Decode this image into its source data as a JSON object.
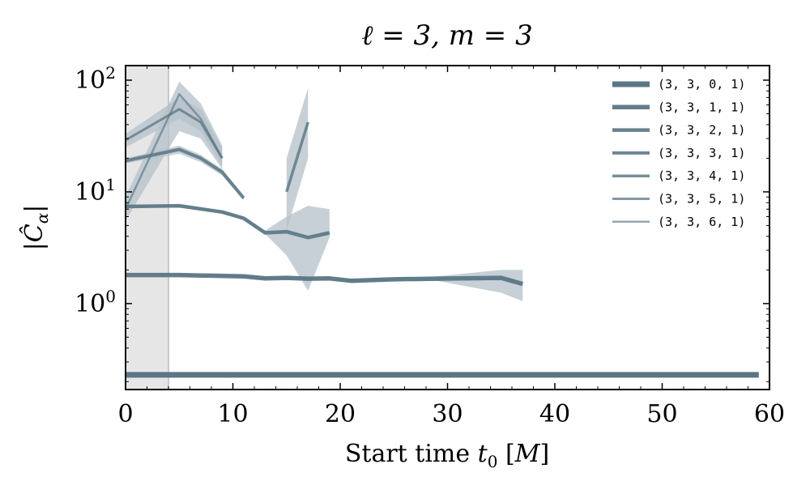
{
  "chart_data": {
    "type": "line",
    "title": "ℓ = 3, m = 3",
    "xlabel": "Start time t₀ [M]",
    "ylabel": "|Ĉα|",
    "xlim": [
      0,
      60
    ],
    "ylim": [
      0.17,
      135
    ],
    "yscale": "log",
    "x_ticks": [
      "0",
      "10",
      "20",
      "30",
      "40",
      "50",
      "60"
    ],
    "y_ticks": [
      {
        "value": 1,
        "base": "10",
        "exp": "0"
      },
      {
        "value": 10,
        "base": "10",
        "exp": "1"
      },
      {
        "value": 100,
        "base": "10",
        "exp": "2"
      }
    ],
    "grid": false,
    "legend_position": "top-right",
    "shaded_region": [
      0,
      4
    ],
    "colors": {
      "line": "#5b7685",
      "band": "#b4c0c8",
      "shade": "#e6e6e6",
      "shade_edge": "#c8c8c8",
      "axis": "#000000"
    },
    "series": [
      {
        "name": "(3, 3, 0, 1)",
        "x": [
          0,
          59
        ],
        "y": [
          0.23,
          0.23
        ],
        "lower": [
          0.23,
          0.23
        ],
        "upper": [
          0.23,
          0.23
        ]
      },
      {
        "name": "(3, 3, 1, 1)",
        "x": [
          0,
          5,
          11,
          13,
          15,
          17,
          19,
          21,
          25,
          29,
          35,
          37
        ],
        "y": [
          1.8,
          1.8,
          1.75,
          1.68,
          1.7,
          1.67,
          1.68,
          1.6,
          1.65,
          1.67,
          1.7,
          1.5
        ],
        "lower": [
          1.78,
          1.78,
          1.72,
          1.64,
          1.66,
          1.62,
          1.64,
          1.56,
          1.6,
          1.6,
          1.25,
          1.05
        ],
        "upper": [
          1.83,
          1.83,
          1.8,
          1.72,
          1.74,
          1.72,
          1.72,
          1.64,
          1.7,
          1.75,
          2.0,
          2.0
        ]
      },
      {
        "name": "(3, 3, 2, 1)",
        "x": [
          0,
          5,
          9,
          11,
          13,
          15,
          17,
          19
        ],
        "y": [
          7.4,
          7.5,
          6.6,
          5.8,
          4.3,
          4.4,
          3.9,
          4.3
        ],
        "lower": [
          7.2,
          7.3,
          6.4,
          5.6,
          4.2,
          2.7,
          1.3,
          3.9
        ],
        "upper": [
          7.6,
          7.7,
          6.8,
          6.0,
          4.5,
          6.0,
          7.5,
          7.0
        ]
      },
      {
        "name": "(3, 3, 3, 1)",
        "x": [
          0,
          5,
          7,
          9,
          11
        ],
        "y": [
          19,
          24,
          20,
          15,
          8.8
        ],
        "lower": [
          18,
          22,
          18.5,
          14,
          8.4
        ],
        "upper": [
          20,
          26,
          21.5,
          16,
          9.3
        ]
      },
      {
        "name": "(3, 3, 4, 1)",
        "x": [
          15,
          17
        ],
        "y": [
          10,
          42
        ],
        "lower": [
          4.5,
          20
        ],
        "upper": [
          20,
          85
        ]
      },
      {
        "name": "(3, 3, 5, 1)",
        "x": [
          0,
          5,
          7,
          9
        ],
        "y": [
          29,
          55,
          42,
          20
        ],
        "lower": [
          25,
          45,
          35,
          17
        ],
        "upper": [
          33,
          70,
          55,
          25
        ]
      },
      {
        "name": "(3, 3, 6, 1)",
        "x": [
          0,
          5,
          7,
          9
        ],
        "y": [
          7,
          75,
          45,
          20
        ],
        "lower": [
          5.5,
          35,
          30,
          16
        ],
        "upper": [
          9,
          97,
          62,
          26
        ]
      }
    ]
  }
}
